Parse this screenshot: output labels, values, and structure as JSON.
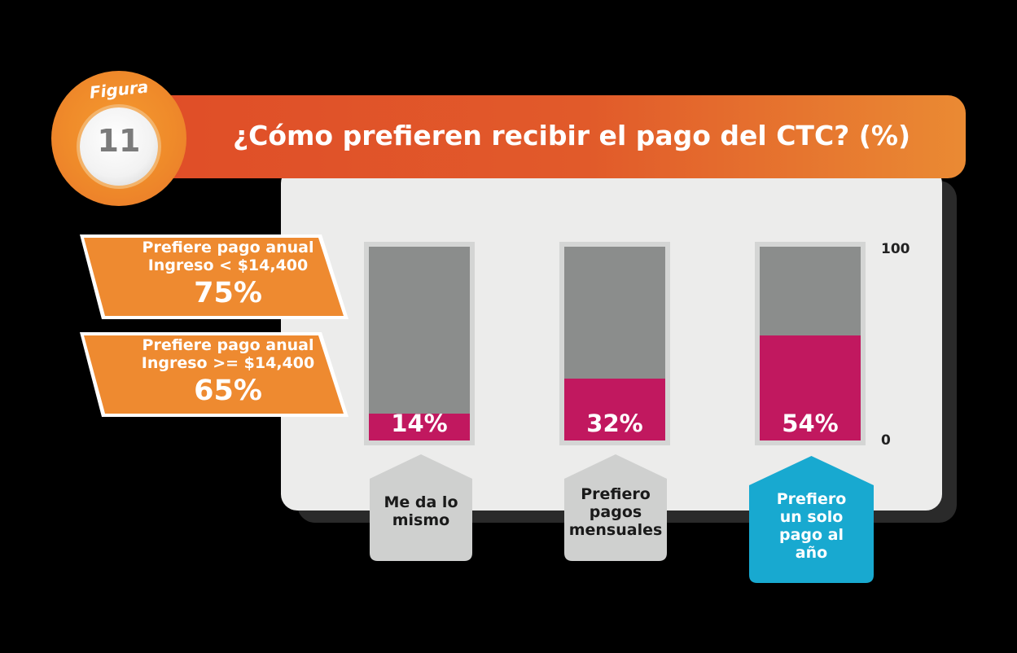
{
  "figure": {
    "word": "Figura",
    "number": "11"
  },
  "title": "¿Cómo prefieren recibir el pago del CTC? (%)",
  "side_tags": [
    {
      "line1": "Prefiere pago anual",
      "line2": "Ingreso < $14,400",
      "pct": "75%"
    },
    {
      "line1": "Prefiere pago anual",
      "line2": "Ingreso >= $14,400",
      "pct": "65%"
    }
  ],
  "colors": {
    "banner": "#e15a2a",
    "badge": "#ef8a2a",
    "bar_fill": "#c1185f",
    "bar_background": "#8b8d8c",
    "category_default": "#cfd0cf",
    "category_highlight": "#18a9d0"
  },
  "chart_data": {
    "type": "bar",
    "title": "¿Cómo prefieren recibir el pago del CTC? (%)",
    "categories": [
      "Me da lo mismo",
      "Prefiero pagos mensuales",
      "Prefiero un solo pago al año"
    ],
    "values": [
      14,
      32,
      54
    ],
    "value_labels": [
      "14%",
      "32%",
      "54%"
    ],
    "ylim": [
      0,
      100
    ],
    "y_ticks": [
      "100",
      "0"
    ],
    "highlighted_category": 2
  },
  "category_labels": [
    [
      "Me da lo",
      "mismo"
    ],
    [
      "Prefiero",
      "pagos",
      "mensuales"
    ],
    [
      "Prefiero",
      "un solo",
      "pago al",
      "año"
    ]
  ]
}
